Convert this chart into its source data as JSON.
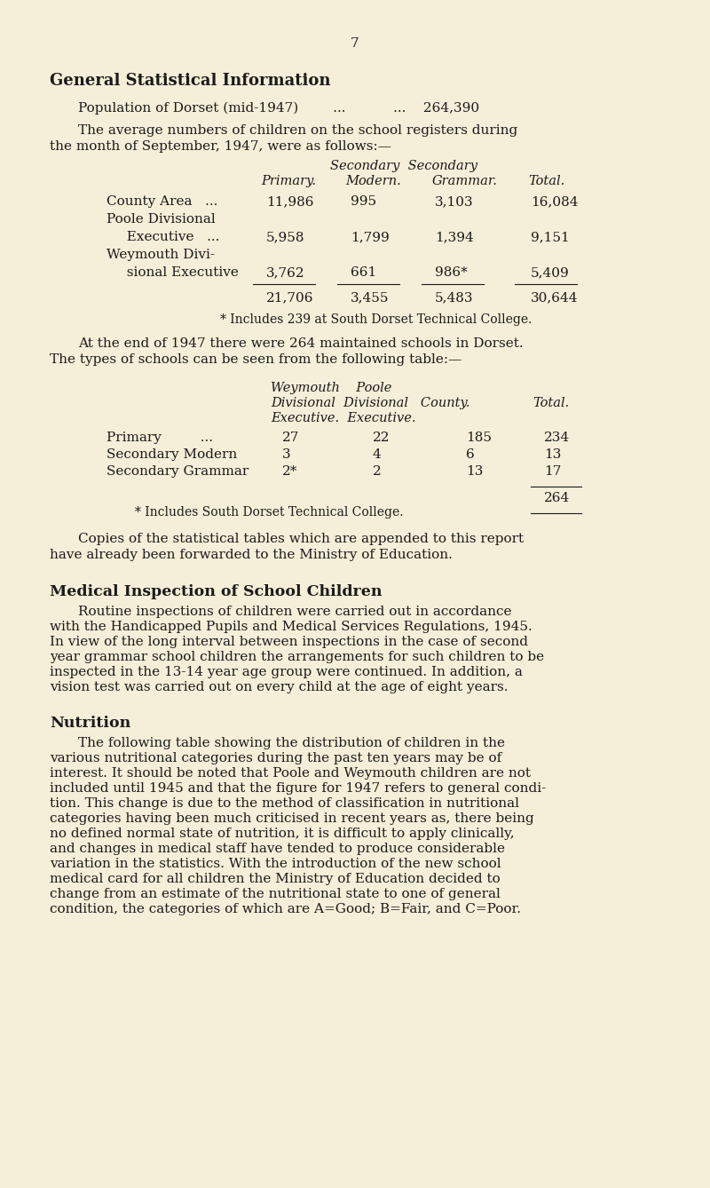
{
  "bg_color": "#f5eed8",
  "text_color": "#1a1a1a",
  "page_number": "7",
  "title": "General Statistical Information",
  "population_line1": "Population of Dorset (mid-1947)        ...           ...    264,390",
  "intro1": "The average numbers of children on the school registers during",
  "intro2": "the month of September, 1947, were as follows:—",
  "t1_h1": "Secondary  Secondary",
  "t1_h2a": "Primary.",
  "t1_h2b": "Modern.",
  "t1_h2c": "Grammar.",
  "t1_h2d": "Total.",
  "t1_r1a": "County Area   ...",
  "t1_r1b": "11,986",
  "t1_r1c": "995",
  "t1_r1d": "3,103",
  "t1_r1e": "16,084",
  "t1_r2a": "Poole Divisional",
  "t1_r3a": "  Executive   ...",
  "t1_r3b": "5,958",
  "t1_r3c": "1,799",
  "t1_r3d": "1,394",
  "t1_r3e": "9,151",
  "t1_r4a": "Weymouth Divi-",
  "t1_r5a": "  sional Executive",
  "t1_r5b": "3,762",
  "t1_r5c": "661",
  "t1_r5d": "986*",
  "t1_r5e": "5,409",
  "t1_tot_a": "21,706",
  "t1_tot_b": "3,455",
  "t1_tot_c": "5,483",
  "t1_tot_d": "30,644",
  "t1_foot": "* Includes 239 at South Dorset Technical College.",
  "p2_1": "At the end of 1947 there were 264 maintained schools in Dorset.",
  "p2_2": "The types of schools can be seen from the following table:—",
  "t2_h1": "Weymouth    Poole",
  "t2_h2": "Divisional  Divisional   County.",
  "t2_h2b": "Total.",
  "t2_h3": "Executive.  Executive.",
  "t2_r1a": "Primary         ...",
  "t2_r1b": "27",
  "t2_r1c": "22",
  "t2_r1d": "185",
  "t2_r1e": "234",
  "t2_r2a": "Secondary Modern",
  "t2_r2b": "3",
  "t2_r2c": "4",
  "t2_r2d": "6",
  "t2_r2e": "13",
  "t2_r3a": "Secondary Grammar",
  "t2_r3b": "2*",
  "t2_r3c": "2",
  "t2_r3d": "13",
  "t2_r3e": "17",
  "t2_tot": "264",
  "t2_foot": "* Includes South Dorset Technical College.",
  "p3_1": "Copies of the statistical tables which are appended to this report",
  "p3_2": "have already been forwarded to the Ministry of Education.",
  "s2_title": "Medical Inspection of School Children",
  "s2_l1": "Routine inspections of children were carried out in accordance",
  "s2_l2": "with the Handicapped Pupils and Medical Services Regulations, 1945.",
  "s2_l3": "In view of the long interval between inspections in the case of second",
  "s2_l4": "year grammar school children the arrangements for such children to be",
  "s2_l5": "inspected in the 13-14 year age group were continued. In addition, a",
  "s2_l6": "vision test was carried out on every child at the age of eight years.",
  "s3_title": "Nutrition",
  "s3_l01": "The following table showing the distribution of children in the",
  "s3_l02": "various nutritional categories during the past ten years may be of",
  "s3_l03": "interest. It should be noted that Poole and Weymouth children are not",
  "s3_l04": "included until 1945 and that the figure for 1947 refers to general condi-",
  "s3_l05": "tion. This change is due to the method of classification in nutritional",
  "s3_l06": "categories having been much criticised in recent years as, there being",
  "s3_l07": "no defined normal state of nutrition, it is difficult to apply clinically,",
  "s3_l08": "and changes in medical staff have tended to produce considerable",
  "s3_l09": "variation in the statistics. With the introduction of the new school",
  "s3_l10": "medical card for all children the Ministry of Education decided to",
  "s3_l11": "change from an estimate of the nutritional state to one of general",
  "s3_l12": "condition, the categories of which are A=Good; B=Fair, and C=Poor."
}
